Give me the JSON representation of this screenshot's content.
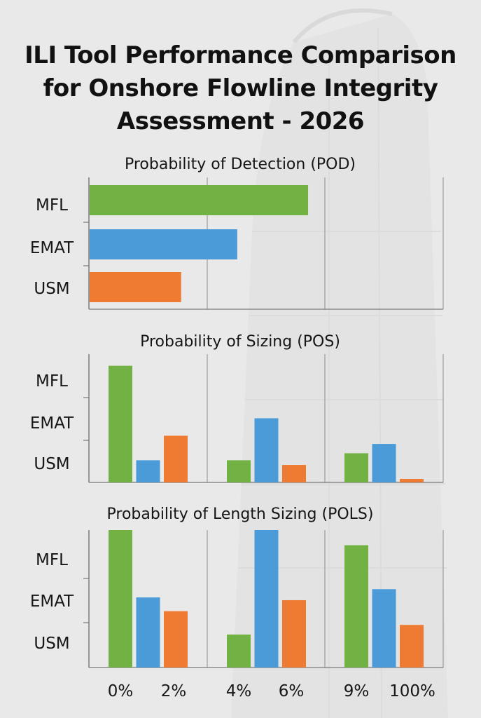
{
  "title_lines": [
    "ILI Tool Performance Comparison",
    "for Onshore Flowline Integrity",
    "Assessment - 2026"
  ],
  "colors": {
    "MFL": "#72b244",
    "EMAT": "#4a9bd8",
    "USM": "#ef7b32"
  },
  "chart_data": [
    {
      "type": "bar",
      "orientation": "horizontal",
      "title": "Probability of Detection (POD)",
      "categories": [
        "MFL",
        "EMAT",
        "USM"
      ],
      "values": [
        3.7,
        2.5,
        1.55
      ],
      "xlim": [
        0,
        6
      ],
      "grid": true
    },
    {
      "type": "bar",
      "orientation": "vertical",
      "title": "Probability of Sizing (POS)",
      "row_labels": [
        "MFL",
        "EMAT",
        "USM"
      ],
      "groups": 3,
      "series": [
        {
          "name": "MFL",
          "values": [
            100,
            19,
            25
          ]
        },
        {
          "name": "EMAT",
          "values": [
            19,
            55,
            33
          ]
        },
        {
          "name": "USM",
          "values": [
            40,
            15,
            3
          ]
        }
      ],
      "ylim": [
        0,
        110
      ],
      "grid": true
    },
    {
      "type": "bar",
      "orientation": "vertical",
      "title": "Probability of Length Sizing (POLS)",
      "row_labels": [
        "MFL",
        "EMAT",
        "USM"
      ],
      "groups": 3,
      "series": [
        {
          "name": "MFL",
          "values": [
            100,
            24,
            89
          ]
        },
        {
          "name": "EMAT",
          "values": [
            51,
            100,
            57
          ]
        },
        {
          "name": "USM",
          "values": [
            41,
            49,
            31
          ]
        }
      ],
      "ylim": [
        0,
        100
      ],
      "grid": true
    }
  ],
  "x_tick_labels": [
    "0%",
    "2%",
    "4%",
    "6%",
    "9%",
    "100%"
  ]
}
